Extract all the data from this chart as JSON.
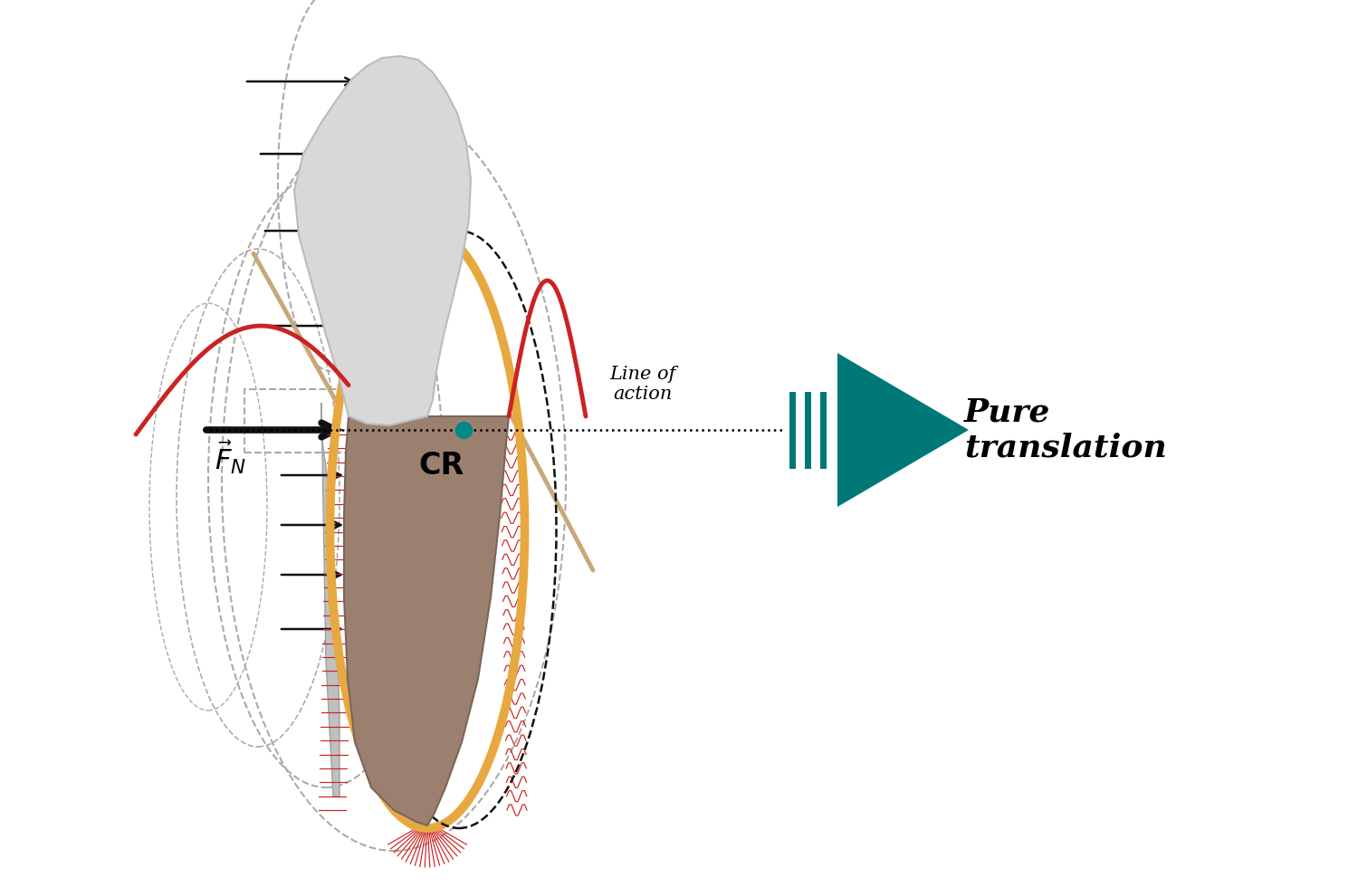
{
  "bg_color": "#ffffff",
  "teal_color": "#007878",
  "orange_color": "#E8A840",
  "red_color": "#CC2222",
  "gray_light": "#D8D8D8",
  "gray_mid": "#BBBBBB",
  "gray_dark": "#999999",
  "brown_color": "#9B8070",
  "tan_color": "#C8A87A",
  "cr_dot_color": "#008888",
  "arrow_color": "#111111",
  "ghost_color": "#AAAAAA",
  "bone_gray": "#C0C0C0",
  "xlim": [
    0,
    15
  ],
  "ylim": [
    0,
    9.8
  ],
  "figw": 15,
  "figh": 9.8
}
